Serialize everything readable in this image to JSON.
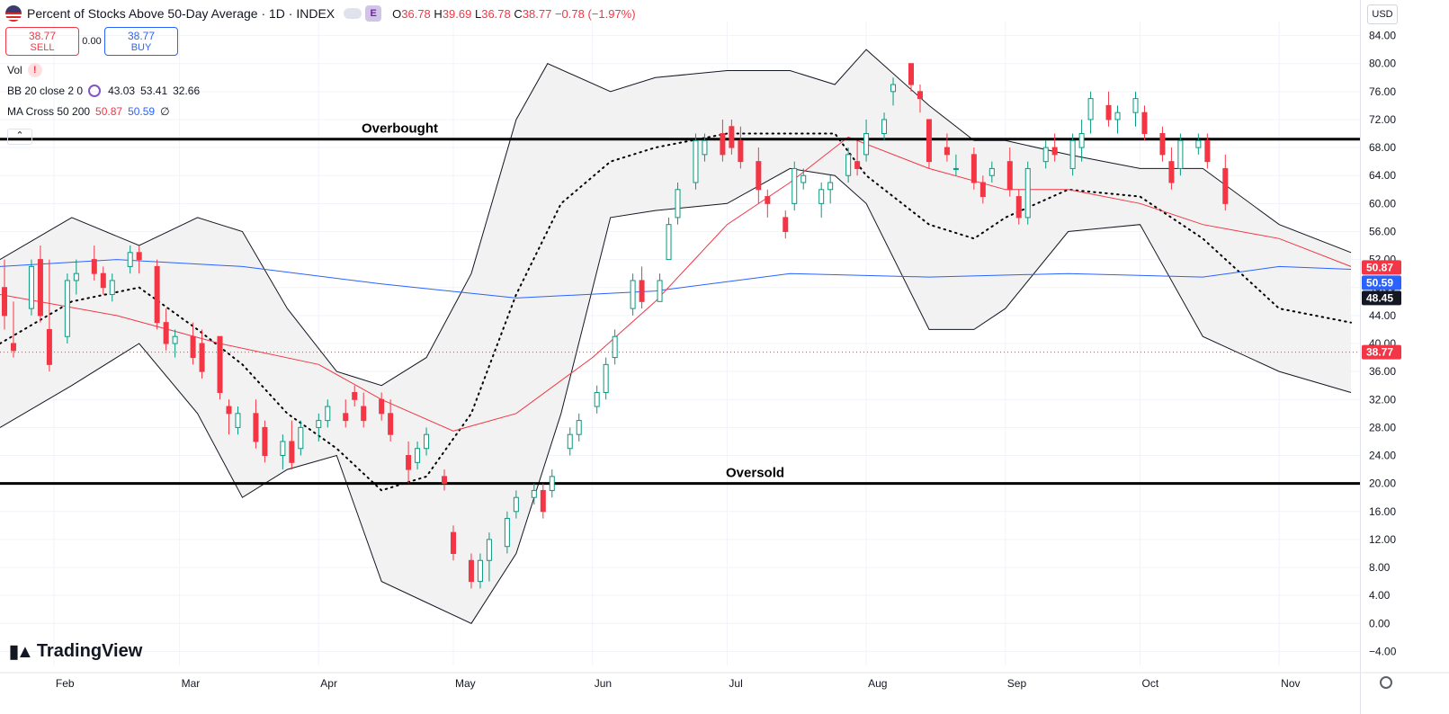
{
  "header": {
    "title": "Percent of Stocks Above 50-Day Average · 1D · INDEX",
    "badge": "E",
    "open_label": "O",
    "open": "36.78",
    "high_label": "H",
    "high": "39.69",
    "low_label": "L",
    "low": "36.78",
    "close_label": "C",
    "close": "38.77",
    "change": "−0.78 (−1.97%)"
  },
  "trade": {
    "sell_price": "38.77",
    "sell_label": "SELL",
    "spread": "0.00",
    "buy_price": "38.77",
    "buy_label": "BUY"
  },
  "indicators": {
    "vol": "Vol",
    "bb_name": "BB 20 close 2 0",
    "bb_mid": "43.03",
    "bb_upper": "53.41",
    "bb_lower": "32.66",
    "ma_name": "MA Cross 50 200",
    "ma50": "50.87",
    "ma200": "50.59",
    "ma_extra": "∅"
  },
  "currency": "USD",
  "brand": "TradingView",
  "colors": {
    "up": "#089981",
    "down": "#f23645",
    "ma50": "#f23645",
    "ma200": "#2962ff",
    "band": "#131722",
    "fill": "#f2f2f2"
  },
  "chart_data": {
    "type": "candlestick",
    "y_ticks": [
      "84.00",
      "80.00",
      "76.00",
      "72.00",
      "68.00",
      "64.00",
      "60.00",
      "56.00",
      "52.00",
      "48.00",
      "44.00",
      "40.00",
      "36.00",
      "32.00",
      "28.00",
      "24.00",
      "20.00",
      "16.00",
      "12.00",
      "8.00",
      "4.00",
      "0.00",
      "−4.00"
    ],
    "ylim": [
      -6,
      86
    ],
    "x_labels": [
      "Feb",
      "Mar",
      "Apr",
      "May",
      "Jun",
      "Jul",
      "Aug",
      "Sep",
      "Oct",
      "Nov"
    ],
    "x_label_dates": [
      "2025-02-01",
      "2025-03-01",
      "2025-04-01",
      "2025-05-01",
      "2025-06-01",
      "2025-07-01",
      "2025-08-01",
      "2025-09-01",
      "2025-10-01",
      "2025-11-01"
    ],
    "xlim": [
      "2025-01-20",
      "2025-11-19"
    ],
    "levels": [
      {
        "label": "Overbought",
        "value": 69.2
      },
      {
        "label": "Oversold",
        "value": 20.0
      }
    ],
    "price_labels": [
      {
        "value": "50.87",
        "color": "#f23645"
      },
      {
        "value": "50.59",
        "color": "#2962ff"
      },
      {
        "value": "48.45",
        "color": "#131722"
      },
      {
        "value": "38.77",
        "color": "#f23645"
      }
    ],
    "last_close": 38.77,
    "series": [
      {
        "name": "MA 50",
        "x": [
          "2025-01-20",
          "2025-02-15",
          "2025-03-10",
          "2025-04-01",
          "2025-04-15",
          "2025-05-01",
          "2025-05-15",
          "2025-06-01",
          "2025-06-15",
          "2025-07-01",
          "2025-07-15",
          "2025-07-28",
          "2025-08-15",
          "2025-09-01",
          "2025-09-15",
          "2025-10-01",
          "2025-10-15",
          "2025-11-01",
          "2025-11-17"
        ],
        "values": [
          47,
          44,
          40,
          37,
          32,
          27.5,
          30,
          38,
          46,
          57,
          63,
          69.5,
          65,
          62,
          62,
          60,
          57,
          55,
          51
        ]
      },
      {
        "name": "MA 200",
        "x": [
          "2025-01-20",
          "2025-02-15",
          "2025-03-15",
          "2025-04-15",
          "2025-05-15",
          "2025-06-15",
          "2025-07-15",
          "2025-08-15",
          "2025-09-15",
          "2025-10-15",
          "2025-11-01",
          "2025-11-17"
        ],
        "values": [
          51,
          52,
          51,
          48.5,
          46.5,
          47.5,
          50,
          49.5,
          50,
          49.5,
          51,
          50.6
        ]
      },
      {
        "name": "BB upper",
        "x": [
          "2025-01-20",
          "2025-02-05",
          "2025-02-20",
          "2025-03-05",
          "2025-03-15",
          "2025-03-25",
          "2025-04-05",
          "2025-04-15",
          "2025-04-25",
          "2025-05-05",
          "2025-05-15",
          "2025-05-22",
          "2025-06-05",
          "2025-06-15",
          "2025-07-01",
          "2025-07-15",
          "2025-07-25",
          "2025-08-01",
          "2025-08-15",
          "2025-08-25",
          "2025-09-01",
          "2025-09-15",
          "2025-10-01",
          "2025-10-15",
          "2025-11-01",
          "2025-11-17"
        ],
        "values": [
          52,
          58,
          54,
          58,
          56,
          45,
          36,
          34,
          38,
          50,
          72,
          80,
          76,
          78,
          79,
          79,
          77,
          82,
          74,
          69,
          69,
          67,
          65,
          65,
          57,
          53
        ]
      },
      {
        "name": "BB lower",
        "x": [
          "2025-01-20",
          "2025-02-05",
          "2025-02-20",
          "2025-03-05",
          "2025-03-15",
          "2025-03-25",
          "2025-04-05",
          "2025-04-15",
          "2025-04-25",
          "2025-05-05",
          "2025-05-15",
          "2025-05-25",
          "2025-06-05",
          "2025-06-15",
          "2025-07-01",
          "2025-07-15",
          "2025-07-25",
          "2025-08-01",
          "2025-08-15",
          "2025-08-25",
          "2025-09-01",
          "2025-09-15",
          "2025-10-01",
          "2025-10-15",
          "2025-11-01",
          "2025-11-17"
        ],
        "values": [
          28,
          34,
          40,
          30,
          18,
          22,
          24,
          6,
          3,
          0,
          10,
          30,
          58,
          59,
          60,
          65,
          64,
          60,
          42,
          42,
          45,
          56,
          57,
          41,
          36,
          33
        ]
      },
      {
        "name": "BB basis",
        "x": [
          "2025-01-20",
          "2025-02-05",
          "2025-02-20",
          "2025-03-05",
          "2025-03-15",
          "2025-03-25",
          "2025-04-05",
          "2025-04-15",
          "2025-04-25",
          "2025-05-05",
          "2025-05-15",
          "2025-05-25",
          "2025-06-05",
          "2025-06-15",
          "2025-07-01",
          "2025-07-15",
          "2025-07-25",
          "2025-08-01",
          "2025-08-15",
          "2025-08-25",
          "2025-09-01",
          "2025-09-15",
          "2025-10-01",
          "2025-10-15",
          "2025-11-01",
          "2025-11-17"
        ],
        "values": [
          40,
          46,
          48,
          42,
          37,
          30,
          25,
          19,
          21,
          30,
          47,
          60,
          66,
          68,
          70,
          70,
          70,
          64,
          57,
          55,
          58,
          62,
          61,
          55,
          45,
          43
        ]
      }
    ],
    "candles": [
      {
        "x": "2025-01-21",
        "o": 48,
        "h": 52,
        "l": 42,
        "c": 44
      },
      {
        "x": "2025-01-23",
        "o": 40,
        "h": 46,
        "l": 38,
        "c": 39
      },
      {
        "x": "2025-01-27",
        "o": 45,
        "h": 52,
        "l": 44,
        "c": 51
      },
      {
        "x": "2025-01-29",
        "o": 52,
        "h": 54,
        "l": 43,
        "c": 44
      },
      {
        "x": "2025-01-31",
        "o": 42,
        "h": 52,
        "l": 36,
        "c": 37
      },
      {
        "x": "2025-02-04",
        "o": 41,
        "h": 50,
        "l": 40,
        "c": 49
      },
      {
        "x": "2025-02-06",
        "o": 49,
        "h": 52,
        "l": 47,
        "c": 50
      },
      {
        "x": "2025-02-10",
        "o": 52,
        "h": 54,
        "l": 49,
        "c": 50
      },
      {
        "x": "2025-02-12",
        "o": 50,
        "h": 51,
        "l": 47,
        "c": 48
      },
      {
        "x": "2025-02-14",
        "o": 47,
        "h": 50,
        "l": 46,
        "c": 49
      },
      {
        "x": "2025-02-18",
        "o": 51,
        "h": 54,
        "l": 50,
        "c": 53
      },
      {
        "x": "2025-02-20",
        "o": 53,
        "h": 54,
        "l": 50,
        "c": 52
      },
      {
        "x": "2025-02-24",
        "o": 51,
        "h": 52,
        "l": 42,
        "c": 43
      },
      {
        "x": "2025-02-26",
        "o": 43,
        "h": 45,
        "l": 39,
        "c": 40
      },
      {
        "x": "2025-02-28",
        "o": 40,
        "h": 42,
        "l": 38,
        "c": 41
      },
      {
        "x": "2025-03-04",
        "o": 41,
        "h": 43,
        "l": 37,
        "c": 38
      },
      {
        "x": "2025-03-06",
        "o": 40,
        "h": 42,
        "l": 35,
        "c": 36
      },
      {
        "x": "2025-03-10",
        "o": 41,
        "h": 41,
        "l": 32,
        "c": 33
      },
      {
        "x": "2025-03-12",
        "o": 31,
        "h": 32,
        "l": 27,
        "c": 30
      },
      {
        "x": "2025-03-14",
        "o": 28,
        "h": 31,
        "l": 27,
        "c": 30
      },
      {
        "x": "2025-03-18",
        "o": 30,
        "h": 32,
        "l": 25,
        "c": 26
      },
      {
        "x": "2025-03-20",
        "o": 28,
        "h": 29,
        "l": 23,
        "c": 24
      },
      {
        "x": "2025-03-24",
        "o": 24,
        "h": 27,
        "l": 22,
        "c": 26
      },
      {
        "x": "2025-03-26",
        "o": 26,
        "h": 29,
        "l": 22,
        "c": 23
      },
      {
        "x": "2025-03-28",
        "o": 25,
        "h": 29,
        "l": 24,
        "c": 28
      },
      {
        "x": "2025-04-01",
        "o": 28,
        "h": 30,
        "l": 26,
        "c": 29
      },
      {
        "x": "2025-04-03",
        "o": 29,
        "h": 32,
        "l": 28,
        "c": 31
      },
      {
        "x": "2025-04-07",
        "o": 30,
        "h": 32,
        "l": 28,
        "c": 29
      },
      {
        "x": "2025-04-09",
        "o": 33,
        "h": 34,
        "l": 31,
        "c": 32
      },
      {
        "x": "2025-04-11",
        "o": 31,
        "h": 33,
        "l": 28,
        "c": 29
      },
      {
        "x": "2025-04-15",
        "o": 32,
        "h": 33,
        "l": 29,
        "c": 30
      },
      {
        "x": "2025-04-17",
        "o": 30,
        "h": 32,
        "l": 26,
        "c": 27
      },
      {
        "x": "2025-04-21",
        "o": 24,
        "h": 26,
        "l": 20,
        "c": 22
      },
      {
        "x": "2025-04-23",
        "o": 23,
        "h": 26,
        "l": 22,
        "c": 25
      },
      {
        "x": "2025-04-25",
        "o": 25,
        "h": 28,
        "l": 24,
        "c": 27
      },
      {
        "x": "2025-04-29",
        "o": 21,
        "h": 22,
        "l": 19,
        "c": 20
      },
      {
        "x": "2025-05-01",
        "o": 13,
        "h": 14,
        "l": 9,
        "c": 10
      },
      {
        "x": "2025-05-05",
        "o": 9,
        "h": 10,
        "l": 5,
        "c": 6
      },
      {
        "x": "2025-05-07",
        "o": 6,
        "h": 10,
        "l": 5,
        "c": 9
      },
      {
        "x": "2025-05-09",
        "o": 9,
        "h": 13,
        "l": 6,
        "c": 12
      },
      {
        "x": "2025-05-13",
        "o": 11,
        "h": 16,
        "l": 10,
        "c": 15
      },
      {
        "x": "2025-05-15",
        "o": 16,
        "h": 19,
        "l": 15,
        "c": 18
      },
      {
        "x": "2025-05-19",
        "o": 18,
        "h": 20,
        "l": 17,
        "c": 19
      },
      {
        "x": "2025-05-21",
        "o": 19,
        "h": 20,
        "l": 15,
        "c": 16
      },
      {
        "x": "2025-05-23",
        "o": 19,
        "h": 22,
        "l": 18,
        "c": 21
      },
      {
        "x": "2025-05-27",
        "o": 25,
        "h": 28,
        "l": 24,
        "c": 27
      },
      {
        "x": "2025-05-29",
        "o": 27,
        "h": 30,
        "l": 26,
        "c": 29
      },
      {
        "x": "2025-06-02",
        "o": 31,
        "h": 34,
        "l": 30,
        "c": 33
      },
      {
        "x": "2025-06-04",
        "o": 33,
        "h": 38,
        "l": 32,
        "c": 37
      },
      {
        "x": "2025-06-06",
        "o": 38,
        "h": 42,
        "l": 37,
        "c": 41
      },
      {
        "x": "2025-06-10",
        "o": 45,
        "h": 50,
        "l": 44,
        "c": 49
      },
      {
        "x": "2025-06-12",
        "o": 49,
        "h": 51,
        "l": 45,
        "c": 46
      },
      {
        "x": "2025-06-16",
        "o": 46,
        "h": 50,
        "l": 46,
        "c": 49
      },
      {
        "x": "2025-06-18",
        "o": 52,
        "h": 58,
        "l": 52,
        "c": 57
      },
      {
        "x": "2025-06-20",
        "o": 58,
        "h": 63,
        "l": 57,
        "c": 62
      },
      {
        "x": "2025-06-24",
        "o": 63,
        "h": 70,
        "l": 62,
        "c": 69
      },
      {
        "x": "2025-06-26",
        "o": 67,
        "h": 70,
        "l": 66,
        "c": 69
      },
      {
        "x": "2025-06-30",
        "o": 70,
        "h": 72,
        "l": 66,
        "c": 67
      },
      {
        "x": "2025-07-02",
        "o": 71,
        "h": 72,
        "l": 67,
        "c": 68
      },
      {
        "x": "2025-07-04",
        "o": 69,
        "h": 71,
        "l": 65,
        "c": 66
      },
      {
        "x": "2025-07-08",
        "o": 66,
        "h": 68,
        "l": 60,
        "c": 62
      },
      {
        "x": "2025-07-10",
        "o": 61,
        "h": 62,
        "l": 58,
        "c": 60
      },
      {
        "x": "2025-07-14",
        "o": 58,
        "h": 59,
        "l": 55,
        "c": 56
      },
      {
        "x": "2025-07-16",
        "o": 60,
        "h": 66,
        "l": 59,
        "c": 65
      },
      {
        "x": "2025-07-18",
        "o": 63,
        "h": 65,
        "l": 62,
        "c": 64
      },
      {
        "x": "2025-07-22",
        "o": 60,
        "h": 63,
        "l": 58,
        "c": 62
      },
      {
        "x": "2025-07-24",
        "o": 62,
        "h": 64,
        "l": 60,
        "c": 63
      },
      {
        "x": "2025-07-28",
        "o": 64,
        "h": 68,
        "l": 63,
        "c": 67
      },
      {
        "x": "2025-07-30",
        "o": 66,
        "h": 69,
        "l": 64,
        "c": 65
      },
      {
        "x": "2025-08-01",
        "o": 67,
        "h": 72,
        "l": 66,
        "c": 70
      },
      {
        "x": "2025-08-05",
        "o": 70,
        "h": 73,
        "l": 69,
        "c": 72
      },
      {
        "x": "2025-08-07",
        "o": 76,
        "h": 78,
        "l": 74,
        "c": 77
      },
      {
        "x": "2025-08-11",
        "o": 80,
        "h": 80,
        "l": 76,
        "c": 77
      },
      {
        "x": "2025-08-13",
        "o": 76,
        "h": 77,
        "l": 73,
        "c": 75
      },
      {
        "x": "2025-08-15",
        "o": 72,
        "h": 72,
        "l": 65,
        "c": 66
      },
      {
        "x": "2025-08-19",
        "o": 68,
        "h": 70,
        "l": 66,
        "c": 67
      },
      {
        "x": "2025-08-21",
        "o": 65,
        "h": 67,
        "l": 64,
        "c": 65
      },
      {
        "x": "2025-08-25",
        "o": 67,
        "h": 68,
        "l": 62,
        "c": 63
      },
      {
        "x": "2025-08-27",
        "o": 63,
        "h": 64,
        "l": 60,
        "c": 61
      },
      {
        "x": "2025-08-29",
        "o": 64,
        "h": 66,
        "l": 63,
        "c": 65
      },
      {
        "x": "2025-09-02",
        "o": 66,
        "h": 68,
        "l": 61,
        "c": 62
      },
      {
        "x": "2025-09-04",
        "o": 61,
        "h": 62,
        "l": 57,
        "c": 58
      },
      {
        "x": "2025-09-06",
        "o": 58,
        "h": 66,
        "l": 57,
        "c": 65
      },
      {
        "x": "2025-09-10",
        "o": 66,
        "h": 69,
        "l": 65,
        "c": 68
      },
      {
        "x": "2025-09-12",
        "o": 68,
        "h": 70,
        "l": 66,
        "c": 67
      },
      {
        "x": "2025-09-16",
        "o": 65,
        "h": 70,
        "l": 64,
        "c": 69
      },
      {
        "x": "2025-09-18",
        "o": 68,
        "h": 72,
        "l": 66,
        "c": 70
      },
      {
        "x": "2025-09-20",
        "o": 72,
        "h": 76,
        "l": 70,
        "c": 75
      },
      {
        "x": "2025-09-24",
        "o": 74,
        "h": 76,
        "l": 71,
        "c": 72
      },
      {
        "x": "2025-09-26",
        "o": 72,
        "h": 74,
        "l": 70,
        "c": 73
      },
      {
        "x": "2025-09-30",
        "o": 73,
        "h": 76,
        "l": 71,
        "c": 75
      },
      {
        "x": "2025-10-02",
        "o": 73,
        "h": 74,
        "l": 69,
        "c": 70
      },
      {
        "x": "2025-10-06",
        "o": 70,
        "h": 71,
        "l": 66,
        "c": 67
      },
      {
        "x": "2025-10-08",
        "o": 66,
        "h": 68,
        "l": 62,
        "c": 63
      },
      {
        "x": "2025-10-10",
        "o": 65,
        "h": 70,
        "l": 64,
        "c": 69
      },
      {
        "x": "2025-10-14",
        "o": 68,
        "h": 70,
        "l": 67,
        "c": 69
      },
      {
        "x": "2025-10-16",
        "o": 69,
        "h": 70,
        "l": 65,
        "c": 66
      },
      {
        "x": "2025-10-20",
        "o": 65,
        "h": 67,
        "l": 59,
        "c": 60
      }
    ]
  }
}
